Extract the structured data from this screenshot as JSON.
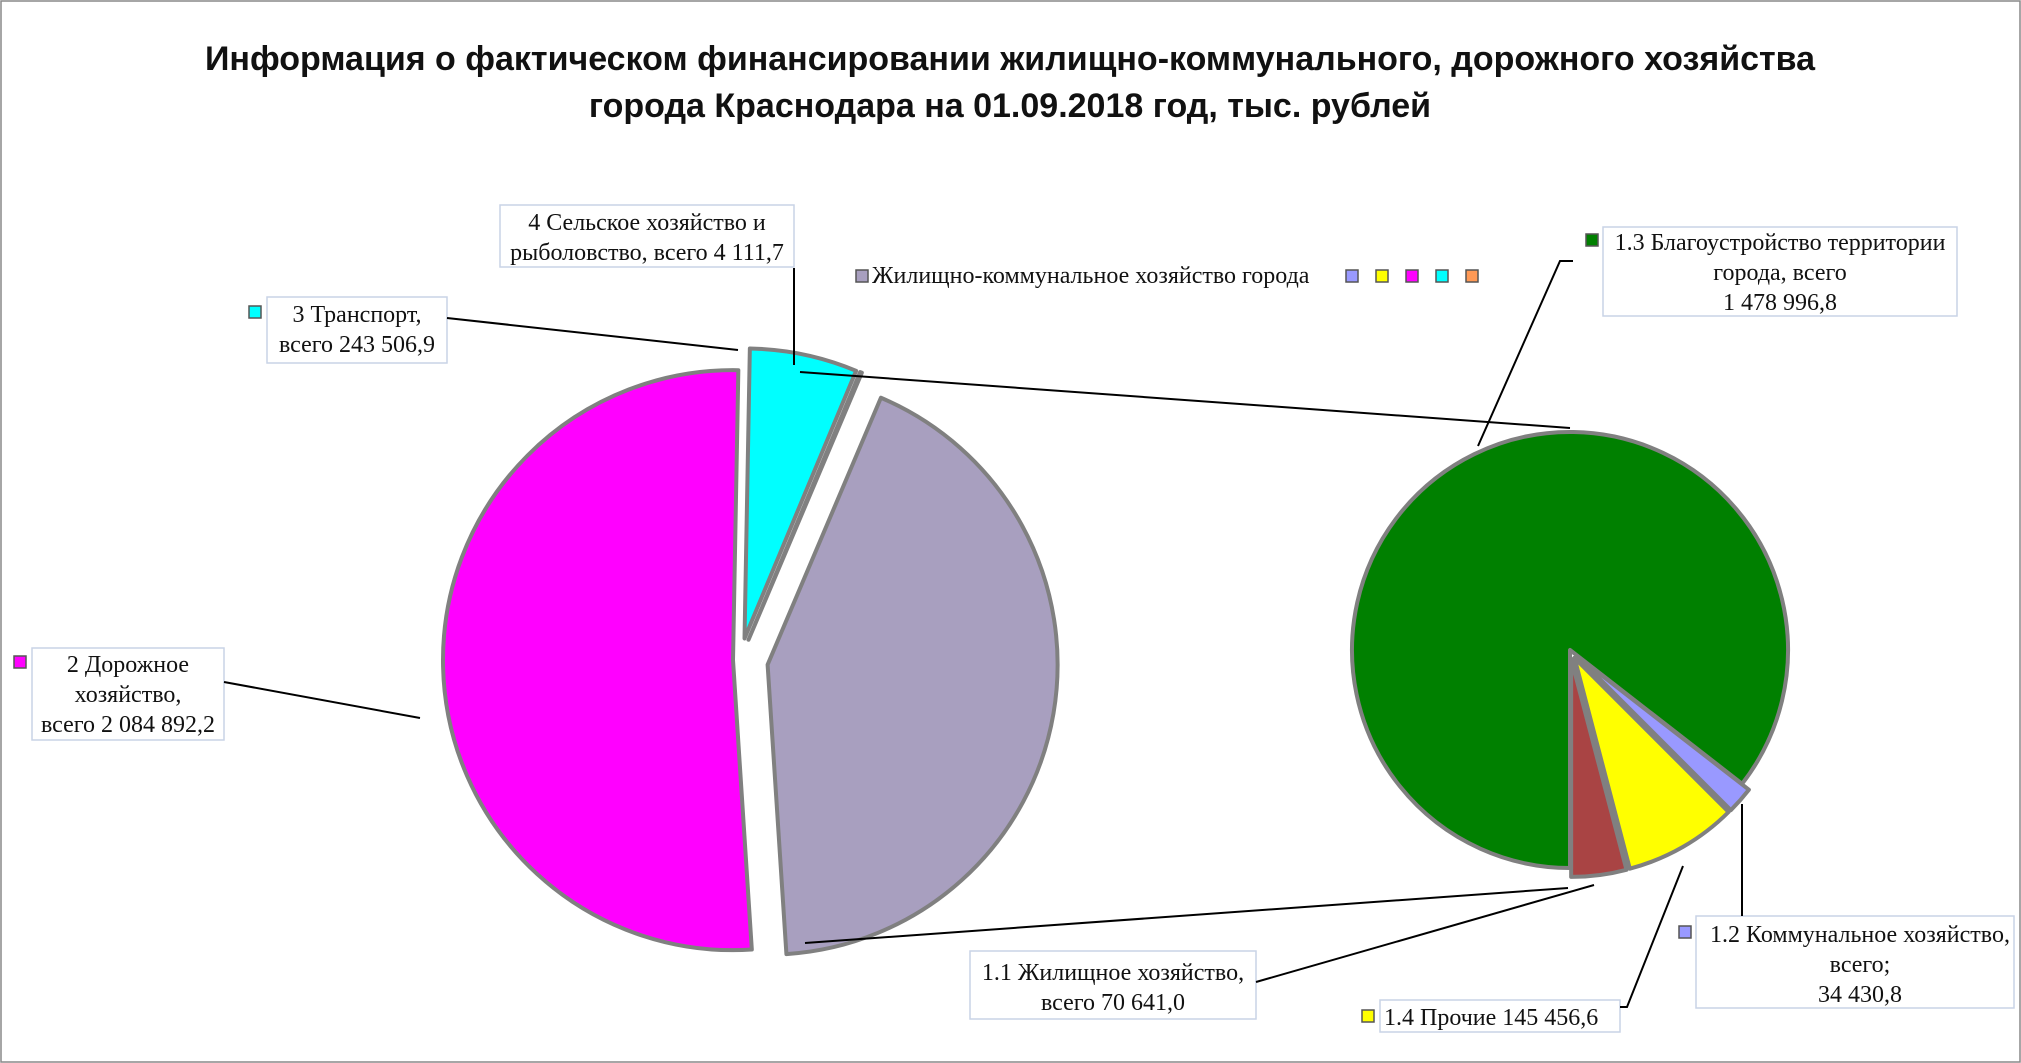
{
  "chart_data": {
    "type": "bar-of-pie",
    "title_lines": [
      "Информация о фактическом финансировании жилищно-коммунального, дорожного  хозяйства",
      "города Краснодара на 01.09.2018 год, тыс. рублей"
    ],
    "main_pie": {
      "slices": [
        {
          "name": "Жилищно-коммунальное  хозяйство города",
          "value": 1729525.2,
          "color": "#a89fbf",
          "label_lines": []
        },
        {
          "name": "2 Дорожное хозяйство",
          "value": 2084892.2,
          "color": "#ff00ff",
          "label_lines": [
            "2 Дорожное",
            "хозяйство,",
            "всего 2 084 892,2"
          ]
        },
        {
          "name": "3 Транспорт",
          "value": 243506.9,
          "color": "#00ffff",
          "label_lines": [
            "3 Транспорт,",
            "всего 243 506,9"
          ]
        },
        {
          "name": "4 Сельское хозяйство и рыболовство",
          "value": 4111.7,
          "color": "#7f7f7f",
          "label_lines": [
            "4 Сельское хозяйство и",
            "рыболовство, всего 4 111,7"
          ]
        }
      ]
    },
    "secondary_pie": {
      "slices": [
        {
          "name": "1.3 Благоустройство территории города",
          "value": 1478996.8,
          "color": "#008000",
          "label_lines": [
            "1.3 Благоустройство территории",
            "города, всего",
            "1 478 996,8"
          ]
        },
        {
          "name": "1.2 Коммунальное хозяйство",
          "value": 34430.8,
          "color": "#9999ff",
          "label_lines": [
            "1.2 Коммунальное хозяйство,",
            "всего;",
            "34 430,8"
          ]
        },
        {
          "name": "1.4 Прочие",
          "value": 145456.6,
          "color": "#ffff00",
          "label_lines": [
            "1.4 Прочие 145 456,6"
          ]
        },
        {
          "name": "1.1 Жилищное хозяйство",
          "value": 70641.0,
          "color": "#a94444",
          "label_lines": [
            "1.1 Жилищное хозяйство,",
            "всего 70 641,0"
          ]
        }
      ]
    },
    "legend": {
      "text": "Жилищно-коммунальное  хозяйство города",
      "trailing_marker_colors": [
        "#9999ff",
        "#ffff00",
        "#ff00ff",
        "#00ffff",
        "#ff9955"
      ]
    }
  }
}
